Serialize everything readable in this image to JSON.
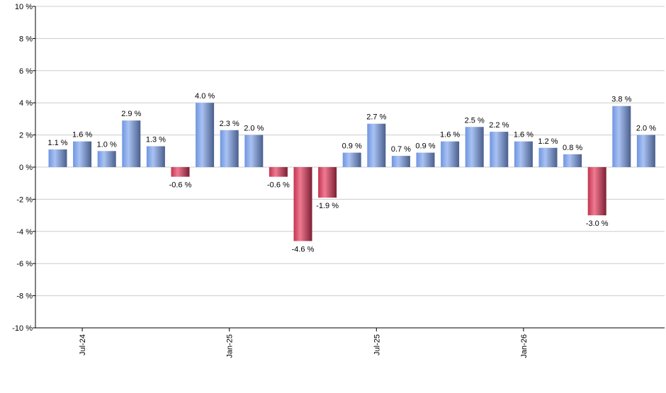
{
  "chart_data": {
    "type": "bar",
    "title": "",
    "xlabel": "",
    "ylabel": "",
    "ylim": [
      -10,
      10
    ],
    "yticks": [
      {
        "value": 10,
        "label": "10 %"
      },
      {
        "value": 8,
        "label": "8 %"
      },
      {
        "value": 6,
        "label": "6 %"
      },
      {
        "value": 4,
        "label": "4 %"
      },
      {
        "value": 2,
        "label": "2 %"
      },
      {
        "value": 0,
        "label": "0 %"
      },
      {
        "value": -2,
        "label": "-2 %"
      },
      {
        "value": -4,
        "label": "-4 %"
      },
      {
        "value": -6,
        "label": "-6 %"
      },
      {
        "value": -8,
        "label": "-8 %"
      },
      {
        "value": -10,
        "label": "-10 %"
      }
    ],
    "categories": [
      "2024-06",
      "2024-07",
      "2024-08",
      "2024-09",
      "2024-10",
      "2024-11",
      "2024-12",
      "2025-01",
      "2025-02",
      "2025-03",
      "2025-04",
      "2025-05",
      "2025-06",
      "2025-07",
      "2025-08",
      "2025-09",
      "2025-10",
      "2025-11",
      "2025-12",
      "2026-01",
      "2026-02",
      "2026-03",
      "2026-04",
      "2026-05",
      "2026-06"
    ],
    "values": [
      1.1,
      1.6,
      1.0,
      2.9,
      1.3,
      -0.6,
      4.0,
      2.3,
      2.0,
      -0.6,
      -4.6,
      -1.9,
      0.9,
      2.7,
      0.7,
      0.9,
      1.6,
      2.5,
      2.2,
      1.6,
      1.2,
      0.8,
      -3.0,
      3.8,
      2.0
    ],
    "value_labels": [
      "1.1 %",
      "1.6 %",
      "1.0 %",
      "2.9 %",
      "1.3 %",
      "-0.6 %",
      "4.0 %",
      "2.3 %",
      "2.0 %",
      "-0.6 %",
      "-4.6 %",
      "-1.9 %",
      "0.9 %",
      "2.7 %",
      "0.7 %",
      "0.9 %",
      "1.6 %",
      "2.5 %",
      "2.2 %",
      "1.6 %",
      "1.2 %",
      "0.8 %",
      "-3.0 %",
      "3.8 %",
      "2.0 %"
    ],
    "xticks": [
      {
        "category": "2024-07",
        "label": "Jul-24"
      },
      {
        "category": "2025-01",
        "label": "Jan-25"
      },
      {
        "category": "2025-07",
        "label": "Jul-25"
      },
      {
        "category": "2026-01",
        "label": "Jan-26"
      }
    ],
    "colors": {
      "positive": "#7a9de0",
      "negative": "#d2405e",
      "grid": "#cccccc",
      "axis": "#000000"
    },
    "grid": true,
    "legend": "none"
  }
}
